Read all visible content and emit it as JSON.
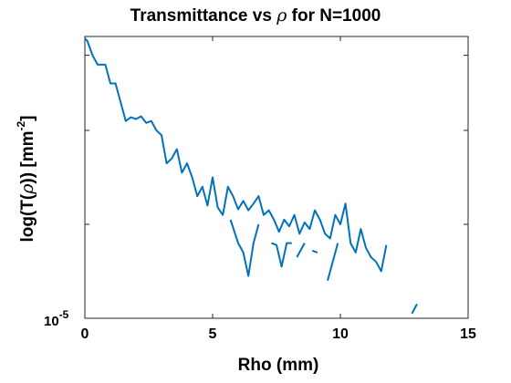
{
  "chart_data": {
    "type": "line",
    "title_prefix": "Transmittance vs ",
    "title_symbol": "ρ",
    "title_suffix": " for N=1000",
    "xlabel": "Rho (mm)",
    "ylabel_prefix": "log(T(",
    "ylabel_symbol": "ρ",
    "ylabel_suffix": ")) [mm",
    "ylabel_exp": "-2",
    "ylabel_close": "]",
    "xlim": [
      0,
      15
    ],
    "x_ticks": [
      "0",
      "5",
      "10",
      "15"
    ],
    "y_scale": "log",
    "y_tick_base": "10",
    "y_tick_exp": "-5",
    "ylim_log10": [
      -5,
      -2
    ],
    "y_minor_ticks_log10": [
      -4.0,
      -3.0,
      -2.2
    ],
    "line_color": "#0072BD",
    "grid": false,
    "series": [
      {
        "segments": [
          [
            [
              0.0,
              -2.02
            ],
            [
              0.1,
              -2.05
            ],
            [
              0.3,
              -2.2
            ],
            [
              0.5,
              -2.3
            ],
            [
              0.8,
              -2.3
            ],
            [
              1.0,
              -2.5
            ],
            [
              1.2,
              -2.5
            ],
            [
              1.4,
              -2.7
            ],
            [
              1.6,
              -2.9
            ],
            [
              1.8,
              -2.86
            ],
            [
              2.0,
              -2.88
            ],
            [
              2.2,
              -2.85
            ],
            [
              2.4,
              -2.92
            ],
            [
              2.6,
              -2.9
            ],
            [
              2.8,
              -3.0
            ],
            [
              3.0,
              -3.05
            ],
            [
              3.2,
              -3.35
            ],
            [
              3.4,
              -3.3
            ],
            [
              3.6,
              -3.2
            ],
            [
              3.8,
              -3.45
            ],
            [
              4.0,
              -3.35
            ],
            [
              4.2,
              -3.5
            ],
            [
              4.4,
              -3.7
            ],
            [
              4.6,
              -3.6
            ],
            [
              4.8,
              -3.8
            ],
            [
              5.0,
              -3.5
            ],
            [
              5.2,
              -3.82
            ],
            [
              5.4,
              -3.9
            ],
            [
              5.6,
              -3.6
            ],
            [
              5.8,
              -3.7
            ],
            [
              6.0,
              -3.84
            ],
            [
              6.2,
              -3.75
            ],
            [
              6.4,
              -3.85
            ],
            [
              6.6,
              -3.78
            ],
            [
              6.8,
              -3.7
            ],
            [
              7.0,
              -3.9
            ],
            [
              7.2,
              -3.85
            ],
            [
              7.4,
              -3.95
            ],
            [
              7.6,
              -4.08
            ],
            [
              7.8,
              -3.95
            ],
            [
              8.0,
              -4.02
            ],
            [
              8.2,
              -3.9
            ],
            [
              8.4,
              -4.1
            ],
            [
              8.6,
              -3.98
            ],
            [
              8.8,
              -4.05
            ],
            [
              9.0,
              -3.85
            ],
            [
              9.2,
              -3.95
            ],
            [
              9.4,
              -4.1
            ],
            [
              9.6,
              -4.15
            ],
            [
              9.8,
              -3.9
            ],
            [
              10.0,
              -4.0
            ],
            [
              10.2,
              -3.78
            ],
            [
              10.4,
              -4.2
            ],
            [
              10.6,
              -4.3
            ],
            [
              10.8,
              -4.05
            ],
            [
              11.0,
              -4.25
            ],
            [
              11.2,
              -4.35
            ],
            [
              11.4,
              -4.4
            ],
            [
              11.6,
              -4.5
            ],
            [
              11.8,
              -4.22
            ]
          ],
          [
            [
              5.7,
              -3.95
            ],
            [
              6.0,
              -4.2
            ],
            [
              6.2,
              -4.3
            ],
            [
              6.4,
              -4.55
            ],
            [
              6.6,
              -4.2
            ],
            [
              6.8,
              -4.0
            ]
          ],
          [
            [
              7.3,
              -4.2
            ],
            [
              7.5,
              -4.22
            ],
            [
              7.7,
              -4.45
            ],
            [
              7.9,
              -4.2
            ],
            [
              8.1,
              -4.2
            ]
          ],
          [
            [
              8.3,
              -4.35
            ],
            [
              8.6,
              -4.2
            ]
          ],
          [
            [
              8.9,
              -4.28
            ],
            [
              9.1,
              -4.3
            ]
          ],
          [
            [
              9.5,
              -4.6
            ],
            [
              9.7,
              -4.4
            ],
            [
              9.9,
              -4.2
            ]
          ],
          [
            [
              12.8,
              -4.95
            ],
            [
              13.0,
              -4.85
            ]
          ]
        ]
      }
    ]
  }
}
